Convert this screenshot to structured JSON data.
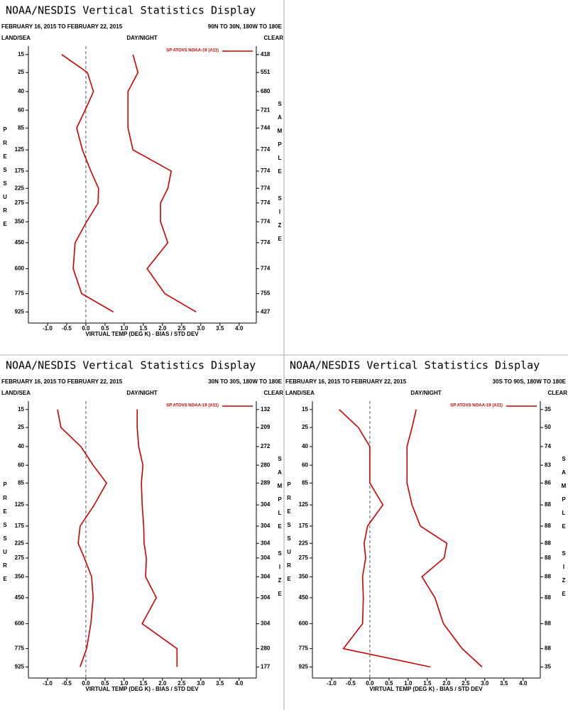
{
  "chart_data": [
    {
      "type": "line",
      "title": "NOAA/NESDIS Vertical Statistics Display",
      "subtitle": "FEBRUARY 16, 2015 TO FEBRUARY 22, 2015",
      "region": "90N TO 30N, 180W TO 180E",
      "land_sea": "LAND/SEA",
      "day_night": "DAY/NIGHT",
      "cloud": "CLEAR",
      "ylabel": "PRESSURE",
      "y2label": "SAMPLE SIZE",
      "xlabel": "VIRTUAL TEMP (DEG K) - BIAS / STD DEV",
      "y_power": 0.286,
      "ylim": [
        11.5,
        1025
      ],
      "yticks": [
        15,
        25,
        40,
        60,
        85,
        125,
        175,
        225,
        275,
        350,
        450,
        600,
        775,
        925
      ],
      "xlim": [
        -1.5,
        4.45
      ],
      "xticks": [
        {
          "value": -1,
          "label": "-1.0"
        },
        -0.5,
        {
          "value": 0,
          "label": "0.0"
        },
        0.5,
        {
          "value": 1,
          "label": "1.0"
        },
        1.5,
        {
          "value": 2,
          "label": "2.0"
        },
        2.5,
        {
          "value": 3,
          "label": "3.0"
        },
        3.5,
        {
          "value": 4,
          "label": "4.0"
        }
      ],
      "zero_line": true,
      "series": [
        {
          "name": "SP ATOVS NOAA-19 (A11)",
          "color": "#cc0000",
          "values": [
            -0.63,
            0.04,
            0.2,
            -0.02,
            -0.24,
            -0.09,
            0.13,
            0.33,
            0.32,
            0.02,
            -0.28,
            -0.33,
            -0.11,
            0.72
          ]
        },
        {
          "color": "#cc0000",
          "values": [
            1.23,
            1.36,
            1.1,
            1.1,
            1.1,
            1.23,
            2.23,
            2.14,
            1.95,
            1.95,
            2.14,
            1.6,
            2.06,
            2.88
          ]
        }
      ],
      "sample_size": [
        418,
        551,
        680,
        721,
        744,
        774,
        774,
        774,
        774,
        774,
        774,
        774,
        755,
        427
      ]
    },
    {
      "type": "line",
      "title": "NOAA/NESDIS Vertical Statistics Display",
      "subtitle": "FEBRUARY 16, 2015 TO FEBRUARY 22, 2015",
      "region": "30N TO 30S, 180W TO 180E",
      "land_sea": "LAND/SEA",
      "day_night": "DAY/NIGHT",
      "cloud": "CLEAR",
      "ylabel": "PRESSURE",
      "y2label": "SAMPLE SIZE",
      "xlabel": "VIRTUAL TEMP (DEG K) - BIAS / STD DEV",
      "y_power": 0.286,
      "ylim": [
        11.5,
        1025
      ],
      "yticks": [
        15,
        25,
        40,
        60,
        85,
        125,
        175,
        225,
        275,
        350,
        450,
        600,
        775,
        925
      ],
      "xlim": [
        -1.5,
        4.45
      ],
      "xticks": [
        {
          "value": -1,
          "label": "-1.0"
        },
        -0.5,
        {
          "value": 0,
          "label": "0.0"
        },
        0.5,
        {
          "value": 1,
          "label": "1.0"
        },
        1.5,
        {
          "value": 2,
          "label": "2.0"
        },
        2.5,
        {
          "value": 3,
          "label": "3.0"
        },
        3.5,
        {
          "value": 4,
          "label": "4.0"
        }
      ],
      "zero_line": true,
      "series": [
        {
          "name": "SP ATOVS NOAA-19 (A11)",
          "color": "#cc0000",
          "values": [
            -0.74,
            -0.65,
            -0.13,
            0.19,
            0.54,
            0.22,
            -0.15,
            -0.2,
            -0.04,
            0.15,
            0.19,
            0.13,
            0.02,
            -0.15
          ]
        },
        {
          "color": "#cc0000",
          "values": [
            1.34,
            1.34,
            1.38,
            1.49,
            1.45,
            1.47,
            1.51,
            1.52,
            1.58,
            1.56,
            1.84,
            1.47,
            2.38,
            2.38
          ]
        }
      ],
      "sample_size": [
        132,
        209,
        272,
        280,
        289,
        304,
        304,
        304,
        304,
        304,
        304,
        304,
        280,
        177
      ]
    },
    {
      "type": "line",
      "title": "NOAA/NESDIS Vertical Statistics Display",
      "subtitle": "FEBRUARY 16, 2015 TO FEBRUARY 22, 2015",
      "region": "30S TO 90S, 180W TO 180E",
      "land_sea": "LAND/SEA",
      "day_night": "DAY/NIGHT",
      "cloud": "CLEAR",
      "ylabel": "PRESSURE",
      "y2label": "SAMPLE SIZE",
      "xlabel": "VIRTUAL TEMP (DEG K) - BIAS / STD DEV",
      "y_power": 0.286,
      "ylim": [
        11.5,
        1025
      ],
      "yticks": [
        15,
        25,
        40,
        60,
        85,
        125,
        175,
        225,
        275,
        350,
        450,
        600,
        775,
        925
      ],
      "xlim": [
        -1.5,
        4.45
      ],
      "xticks": [
        {
          "value": -1,
          "label": "-1.0"
        },
        -0.5,
        {
          "value": 0,
          "label": "0.0"
        },
        0.5,
        {
          "value": 1,
          "label": "1.0"
        },
        1.5,
        {
          "value": 2,
          "label": "2.0"
        },
        2.5,
        {
          "value": 3,
          "label": "3.0"
        },
        3.5,
        {
          "value": 4,
          "label": "4.0"
        }
      ],
      "zero_line": true,
      "series": [
        {
          "name": "SP ATOVS NOAA-19 (A11)",
          "color": "#cc0000",
          "values": [
            -0.8,
            -0.3,
            0,
            0,
            0,
            0.34,
            -0.06,
            -0.15,
            -0.11,
            -0.19,
            -0.17,
            -0.19,
            -0.69,
            1.58
          ]
        },
        {
          "color": "#cc0000",
          "values": [
            1.21,
            1.1,
            0.97,
            0.97,
            0.97,
            1.1,
            1.32,
            2.01,
            1.94,
            1.36,
            1.7,
            1.92,
            2.41,
            2.93
          ]
        }
      ],
      "sample_size": [
        35,
        50,
        74,
        83,
        86,
        88,
        88,
        88,
        88,
        88,
        88,
        88,
        88,
        35
      ]
    }
  ]
}
